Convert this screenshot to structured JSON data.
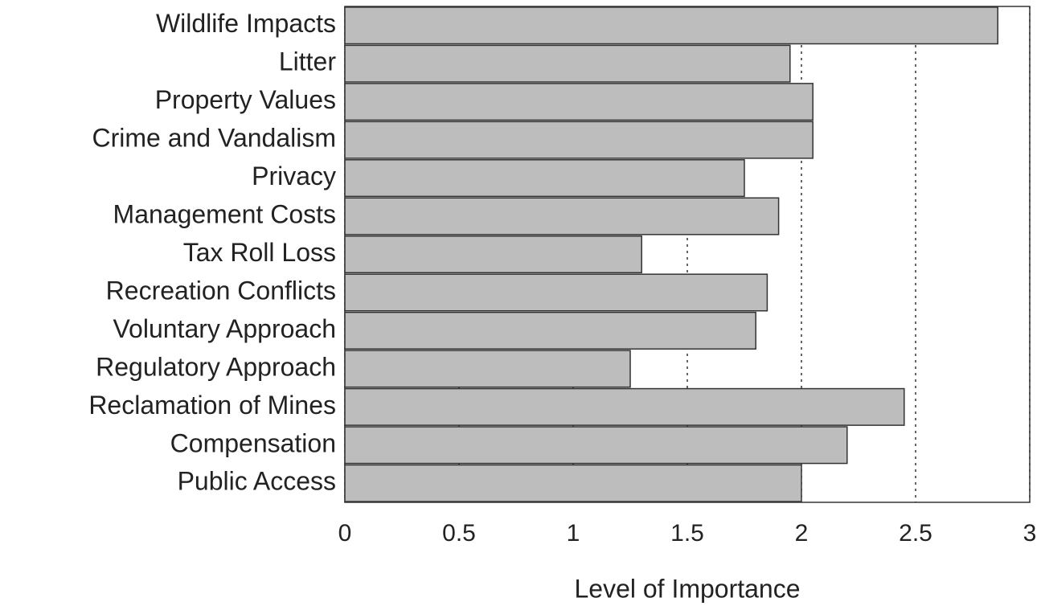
{
  "chart_data": {
    "type": "barh",
    "categories": [
      "Wildlife Impacts",
      "Litter",
      "Property Values",
      "Crime and Vandalism",
      "Privacy",
      "Management Costs",
      "Tax Roll Loss",
      "Recreation Conflicts",
      "Voluntary Approach",
      "Regulatory Approach",
      "Reclamation of Mines",
      "Compensation",
      "Public Access"
    ],
    "values": [
      2.86,
      1.95,
      2.05,
      2.05,
      1.75,
      1.9,
      1.3,
      1.85,
      1.8,
      1.25,
      2.45,
      2.2,
      2.0
    ],
    "color": "#bdbdbd",
    "x_label": "Level of Importance",
    "xlim": [
      0,
      3
    ],
    "xticks": [
      0,
      0.5,
      1,
      1.5,
      2,
      2.5,
      3
    ],
    "grid": true
  }
}
